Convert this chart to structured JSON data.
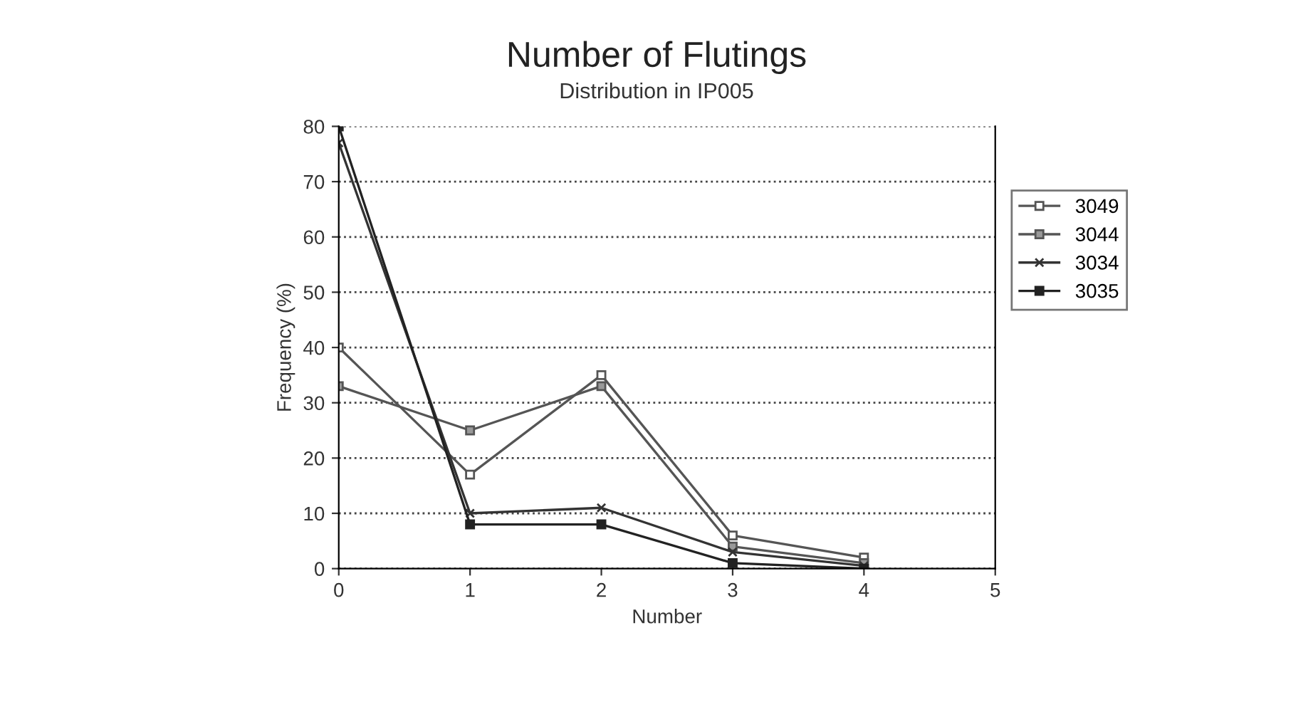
{
  "chart_data": {
    "type": "line",
    "title": "Number of Flutings",
    "subtitle": "Distribution in IP005",
    "xlabel": "Number",
    "ylabel": "Frequency (%)",
    "x": [
      0,
      1,
      2,
      3,
      4
    ],
    "xlim": [
      0,
      5
    ],
    "xticks": [
      0,
      1,
      2,
      3,
      4,
      5
    ],
    "ylim": [
      0,
      80
    ],
    "yticks": [
      0,
      10,
      20,
      30,
      40,
      50,
      60,
      70,
      80
    ],
    "grid": "y",
    "legend": "right",
    "series": [
      {
        "name": "3049",
        "color": "#555555",
        "marker": "square",
        "values": [
          40,
          17,
          35,
          6,
          2
        ]
      },
      {
        "name": "3044",
        "color": "#555555",
        "marker": "square",
        "values": [
          33,
          25,
          33,
          4,
          1
        ]
      },
      {
        "name": "3034",
        "color": "#333333",
        "marker": "cross",
        "values": [
          77,
          10,
          11,
          3,
          0.5
        ]
      },
      {
        "name": "3035",
        "color": "#222222",
        "marker": "square",
        "values": [
          80,
          8,
          8,
          1,
          0
        ]
      }
    ]
  }
}
